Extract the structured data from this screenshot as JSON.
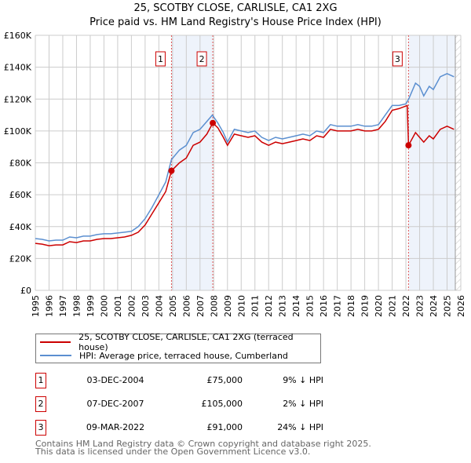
{
  "title": "25, SCOTBY CLOSE, CARLISLE, CA1 2XG",
  "subtitle": "Price paid vs. HM Land Registry's House Price Index (HPI)",
  "chart_data": {
    "type": "line",
    "xlim": [
      1995,
      2026
    ],
    "ylim": [
      0,
      160000
    ],
    "y_ticks": [
      {
        "v": 0,
        "label": "£0"
      },
      {
        "v": 20000,
        "label": "£20K"
      },
      {
        "v": 40000,
        "label": "£40K"
      },
      {
        "v": 60000,
        "label": "£60K"
      },
      {
        "v": 80000,
        "label": "£80K"
      },
      {
        "v": 100000,
        "label": "£100K"
      },
      {
        "v": 120000,
        "label": "£120K"
      },
      {
        "v": 140000,
        "label": "£140K"
      },
      {
        "v": 160000,
        "label": "£160K"
      }
    ],
    "x_ticks": [
      "1995",
      "1996",
      "1997",
      "1998",
      "1999",
      "2000",
      "2001",
      "2002",
      "2003",
      "2004",
      "2005",
      "2006",
      "2007",
      "2008",
      "2009",
      "2010",
      "2011",
      "2012",
      "2013",
      "2014",
      "2015",
      "2016",
      "2017",
      "2018",
      "2019",
      "2020",
      "2021",
      "2022",
      "2023",
      "2024",
      "2025",
      "2026"
    ],
    "grid": true,
    "data_end": 2025.6,
    "shaded_ranges": [
      [
        2004.92,
        2007.93
      ],
      [
        2022.19,
        2025.6
      ]
    ],
    "series": [
      {
        "name": "25, SCOTBY CLOSE, CARLISLE, CA1 2XG (terraced house)",
        "color": "#cc0000",
        "points": [
          [
            1995,
            29.5
          ],
          [
            1995.5,
            29
          ],
          [
            1996,
            28
          ],
          [
            1996.5,
            28.5
          ],
          [
            1997,
            28.5
          ],
          [
            1997.5,
            30.5
          ],
          [
            1998,
            30
          ],
          [
            1998.5,
            31
          ],
          [
            1999,
            31
          ],
          [
            1999.5,
            32
          ],
          [
            2000,
            32.5
          ],
          [
            2000.5,
            32.5
          ],
          [
            2001,
            33
          ],
          [
            2001.5,
            33.5
          ],
          [
            2002,
            34.5
          ],
          [
            2002.5,
            36.5
          ],
          [
            2003,
            41
          ],
          [
            2003.5,
            48
          ],
          [
            2004,
            55
          ],
          [
            2004.5,
            62
          ],
          [
            2004.92,
            75
          ],
          [
            2005.5,
            80
          ],
          [
            2006,
            83
          ],
          [
            2006.5,
            91
          ],
          [
            2007,
            93
          ],
          [
            2007.5,
            98
          ],
          [
            2007.93,
            105
          ],
          [
            2008.3,
            102
          ],
          [
            2008.7,
            96
          ],
          [
            2009,
            91
          ],
          [
            2009.5,
            98
          ],
          [
            2010,
            97
          ],
          [
            2010.5,
            96
          ],
          [
            2011,
            97
          ],
          [
            2011.5,
            93
          ],
          [
            2012,
            91
          ],
          [
            2012.5,
            93
          ],
          [
            2013,
            92
          ],
          [
            2013.5,
            93
          ],
          [
            2014,
            94
          ],
          [
            2014.5,
            95
          ],
          [
            2015,
            94
          ],
          [
            2015.5,
            97
          ],
          [
            2016,
            96
          ],
          [
            2016.5,
            101
          ],
          [
            2017,
            100
          ],
          [
            2017.5,
            100
          ],
          [
            2018,
            100
          ],
          [
            2018.5,
            101
          ],
          [
            2019,
            100
          ],
          [
            2019.5,
            100
          ],
          [
            2020,
            101
          ],
          [
            2020.5,
            106
          ],
          [
            2021,
            113
          ],
          [
            2021.5,
            114
          ],
          [
            2022.1,
            116
          ],
          [
            2022.19,
            91
          ],
          [
            2022.7,
            99
          ],
          [
            2023,
            96
          ],
          [
            2023.3,
            93
          ],
          [
            2023.7,
            97
          ],
          [
            2024,
            95
          ],
          [
            2024.5,
            101
          ],
          [
            2025,
            103
          ],
          [
            2025.5,
            101
          ]
        ]
      },
      {
        "name": "HPI: Average price, terraced house, Cumberland",
        "color": "#5b8fd0",
        "points": [
          [
            1995,
            32.5
          ],
          [
            1995.5,
            32
          ],
          [
            1996,
            31
          ],
          [
            1996.5,
            31.5
          ],
          [
            1997,
            31.5
          ],
          [
            1997.5,
            33.5
          ],
          [
            1998,
            33
          ],
          [
            1998.5,
            34
          ],
          [
            1999,
            34
          ],
          [
            1999.5,
            35
          ],
          [
            2000,
            35.5
          ],
          [
            2000.5,
            35.5
          ],
          [
            2001,
            36
          ],
          [
            2001.5,
            36.5
          ],
          [
            2002,
            37
          ],
          [
            2002.5,
            40
          ],
          [
            2003,
            45
          ],
          [
            2003.5,
            52
          ],
          [
            2004,
            60
          ],
          [
            2004.5,
            68
          ],
          [
            2004.92,
            82
          ],
          [
            2005.5,
            88
          ],
          [
            2006,
            91
          ],
          [
            2006.5,
            99
          ],
          [
            2007,
            101
          ],
          [
            2007.5,
            106
          ],
          [
            2007.9,
            110
          ],
          [
            2008.3,
            105
          ],
          [
            2008.7,
            99
          ],
          [
            2009,
            93
          ],
          [
            2009.5,
            101
          ],
          [
            2010,
            100
          ],
          [
            2010.5,
            99
          ],
          [
            2011,
            100
          ],
          [
            2011.5,
            96
          ],
          [
            2012,
            94
          ],
          [
            2012.5,
            96
          ],
          [
            2013,
            95
          ],
          [
            2013.5,
            96
          ],
          [
            2014,
            97
          ],
          [
            2014.5,
            98
          ],
          [
            2015,
            97
          ],
          [
            2015.5,
            100
          ],
          [
            2016,
            99
          ],
          [
            2016.5,
            104
          ],
          [
            2017,
            103
          ],
          [
            2017.5,
            103
          ],
          [
            2018,
            103
          ],
          [
            2018.5,
            104
          ],
          [
            2019,
            103
          ],
          [
            2019.5,
            103
          ],
          [
            2020,
            104
          ],
          [
            2020.5,
            110
          ],
          [
            2021,
            116
          ],
          [
            2021.5,
            116
          ],
          [
            2022,
            117
          ],
          [
            2022.2,
            120
          ],
          [
            2022.7,
            130
          ],
          [
            2023,
            128
          ],
          [
            2023.3,
            122
          ],
          [
            2023.7,
            128
          ],
          [
            2024,
            126
          ],
          [
            2024.5,
            134
          ],
          [
            2025,
            136
          ],
          [
            2025.5,
            134
          ]
        ]
      }
    ],
    "sales": [
      {
        "id": "1",
        "x": 2004.92,
        "y": 75
      },
      {
        "id": "2",
        "x": 2007.93,
        "y": 105
      },
      {
        "id": "3",
        "x": 2022.19,
        "y": 91
      }
    ]
  },
  "legend": {
    "property": "25, SCOTBY CLOSE, CARLISLE, CA1 2XG (terraced house)",
    "hpi": "HPI: Average price, terraced house, Cumberland"
  },
  "transactions": [
    {
      "num": "1",
      "date": "03-DEC-2004",
      "price": "£75,000",
      "hpi": "9% ↓ HPI"
    },
    {
      "num": "2",
      "date": "07-DEC-2007",
      "price": "£105,000",
      "hpi": "2% ↓ HPI"
    },
    {
      "num": "3",
      "date": "09-MAR-2022",
      "price": "£91,000",
      "hpi": "24% ↓ HPI"
    }
  ],
  "footer": {
    "line1": "Contains HM Land Registry data © Crown copyright and database right 2025.",
    "line2": "This data is licensed under the Open Government Licence v3.0."
  }
}
